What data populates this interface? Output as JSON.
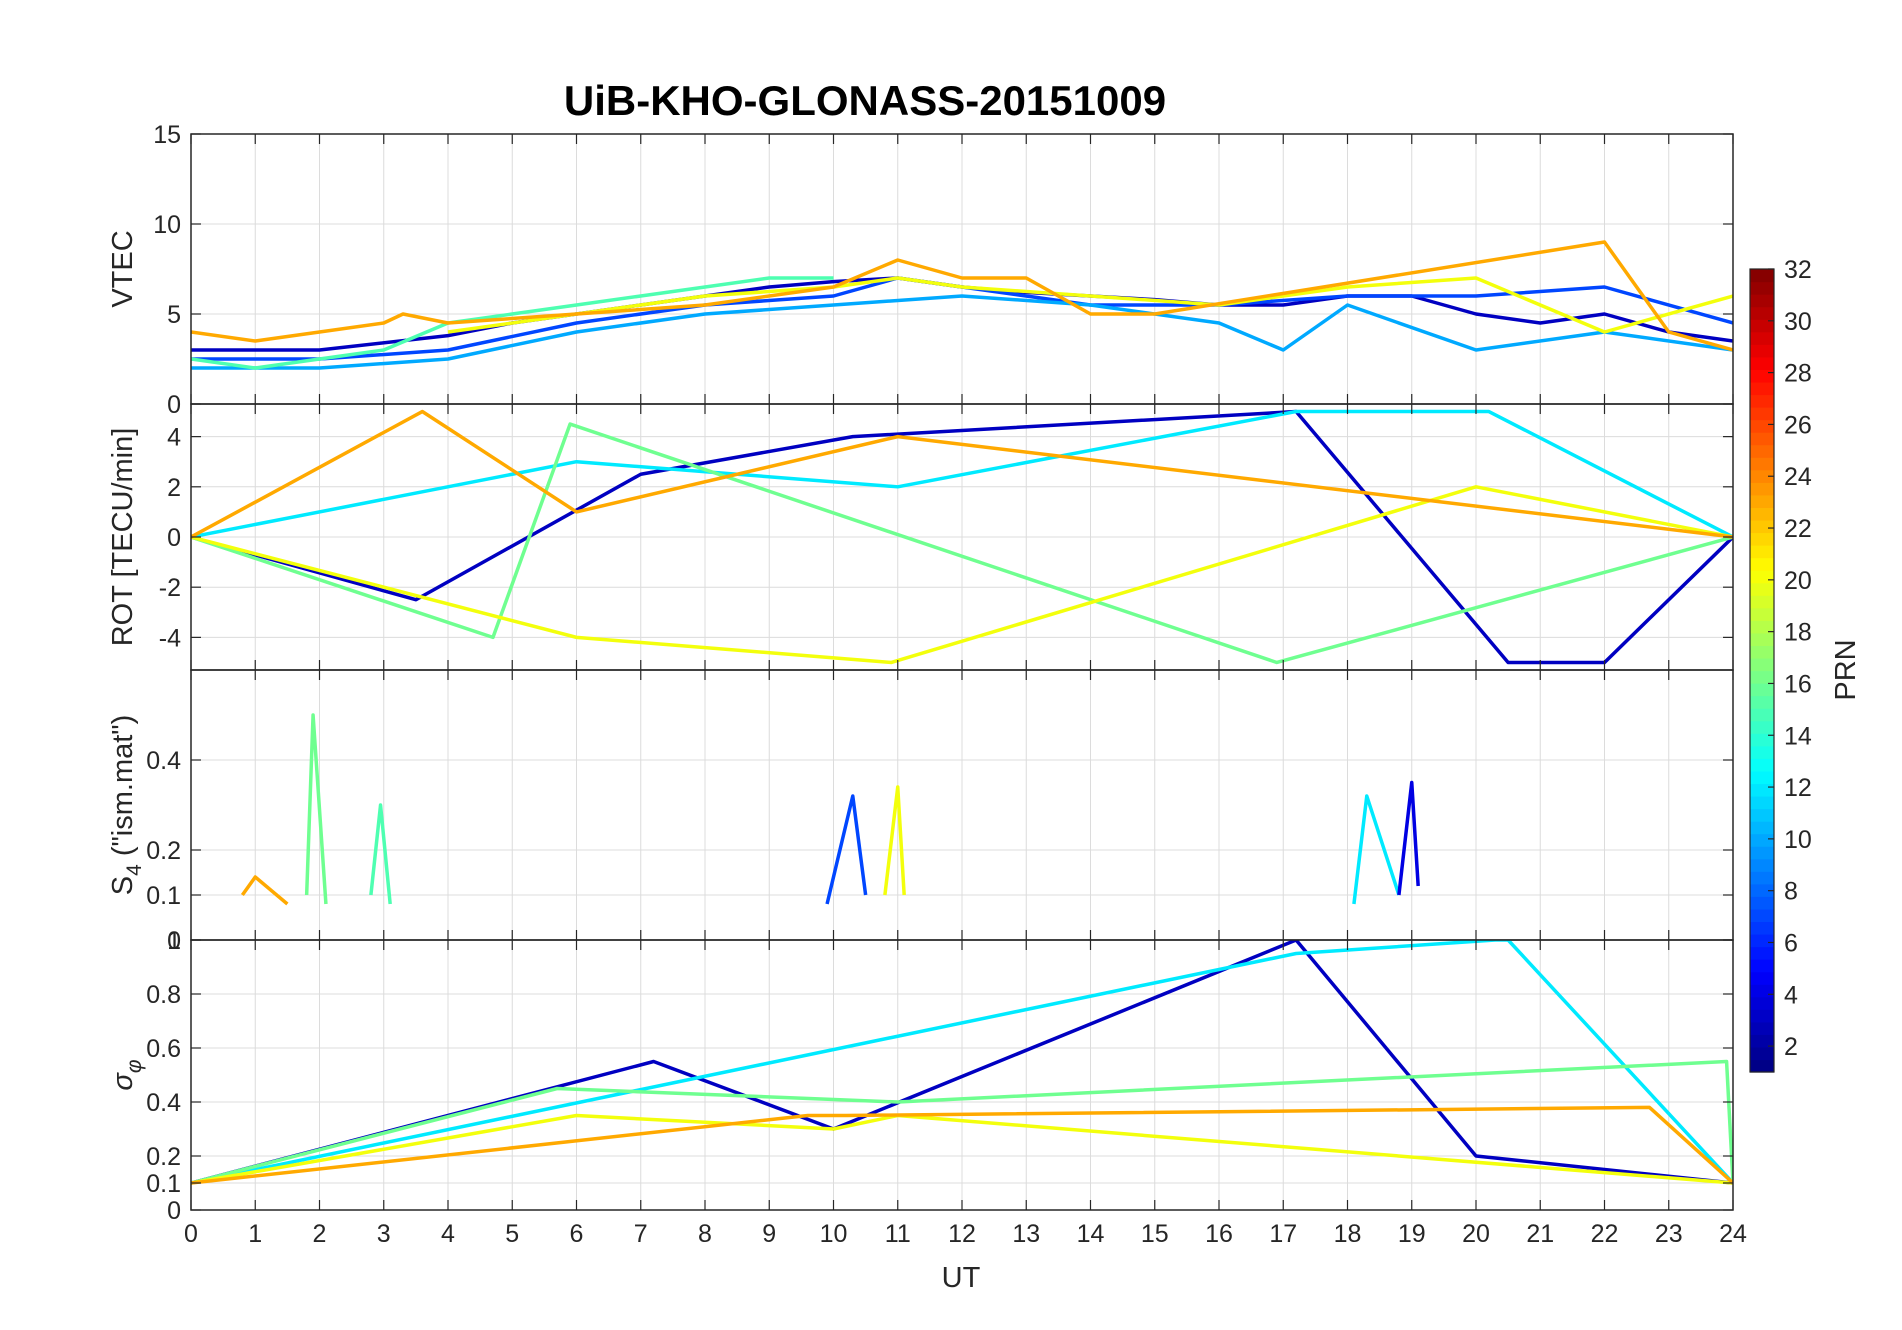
{
  "chart_data": {
    "type": "line",
    "title": "UiB-KHO-GLONASS-20151009",
    "xlabel": "UT",
    "xlim": [
      0,
      24
    ],
    "x_ticks": [
      "0",
      "1",
      "2",
      "3",
      "4",
      "5",
      "6",
      "7",
      "8",
      "9",
      "10",
      "11",
      "12",
      "13",
      "14",
      "15",
      "16",
      "17",
      "18",
      "19",
      "20",
      "21",
      "22",
      "23",
      "24"
    ],
    "grid": true,
    "colormap": "jet",
    "colorbar": {
      "label": "PRN",
      "range": [
        1,
        32
      ],
      "ticks": [
        "2",
        "4",
        "6",
        "8",
        "10",
        "12",
        "14",
        "16",
        "18",
        "20",
        "22",
        "24",
        "26",
        "28",
        "30",
        "32"
      ],
      "position": "right"
    },
    "panels": [
      {
        "ylabel": "VTEC",
        "ylim": [
          0,
          15
        ],
        "y_ticks": [
          "0",
          "5",
          "10",
          "15"
        ],
        "series": [
          {
            "prn": 3,
            "x": [
              0,
              2,
              4,
              5,
              6,
              7,
              8,
              9,
              10,
              11,
              12,
              13,
              14,
              15,
              16,
              17,
              18,
              19,
              20,
              21,
              22,
              23,
              24
            ],
            "y": [
              3,
              3,
              3.8,
              4.5,
              5,
              5.5,
              6,
              6.5,
              6.8,
              7,
              6.5,
              6.2,
              6,
              5.8,
              5.5,
              5.5,
              6,
              6,
              5,
              4.5,
              5,
              4,
              3.5
            ]
          },
          {
            "prn": 7,
            "x": [
              0,
              2,
              4,
              6,
              8,
              10,
              11,
              12,
              14,
              16,
              18,
              20,
              22,
              24
            ],
            "y": [
              2.5,
              2.5,
              3,
              4.5,
              5.5,
              6,
              7,
              6.5,
              5.5,
              5.5,
              6,
              6,
              6.5,
              4.5
            ]
          },
          {
            "prn": 10,
            "x": [
              0,
              2,
              4,
              6,
              8,
              10,
              12,
              14,
              16,
              17,
              18,
              20,
              22,
              24
            ],
            "y": [
              2,
              2,
              2.5,
              4,
              5,
              5.5,
              6,
              5.5,
              4.5,
              3,
              5.5,
              3,
              4,
              3
            ]
          },
          {
            "prn": 15,
            "x": [
              0,
              1,
              2,
              3,
              4,
              5,
              6,
              7,
              8,
              9,
              10
            ],
            "y": [
              2.5,
              2,
              2.5,
              3,
              4.5,
              5,
              5.5,
              6,
              6.5,
              7,
              7
            ]
          },
          {
            "prn": 20,
            "x": [
              4,
              6,
              8,
              10,
              11,
              12,
              14,
              16,
              18,
              20,
              22,
              24
            ],
            "y": [
              4,
              5,
              6,
              6.5,
              7,
              6.5,
              6,
              5.5,
              6.5,
              7,
              4,
              6
            ]
          },
          {
            "prn": 23,
            "x": [
              0,
              1,
              2,
              3,
              3.3,
              4,
              6,
              8,
              10,
              11,
              12,
              13,
              14,
              15,
              22,
              23,
              24
            ],
            "y": [
              4,
              3.5,
              4,
              4.5,
              5,
              4.5,
              5,
              5.5,
              6.5,
              8,
              7,
              7,
              5,
              5,
              9,
              4,
              3
            ]
          }
        ]
      },
      {
        "ylabel": "ROT [TECU/min]",
        "ylim": [
          -5.3,
          5.3
        ],
        "y_ticks": [
          "-4",
          "-2",
          "0",
          "2",
          "4"
        ],
        "series": [
          {
            "prn": 3,
            "x": [
              0,
              3.5,
              7,
              10.3,
              17.2,
              20.5,
              22,
              24
            ],
            "y": [
              0,
              -2.5,
              2.5,
              4,
              5,
              -5,
              -5,
              0
            ]
          },
          {
            "prn": 12,
            "x": [
              0,
              6,
              11,
              17.2,
              20.2,
              24
            ],
            "y": [
              0,
              3,
              2,
              5,
              5,
              0
            ]
          },
          {
            "prn": 16,
            "x": [
              0,
              4.7,
              5.9,
              16.9,
              24
            ],
            "y": [
              0,
              -4,
              4.5,
              -5,
              0
            ]
          },
          {
            "prn": 20,
            "x": [
              0,
              6,
              10.9,
              20,
              24
            ],
            "y": [
              0,
              -4,
              -5,
              2,
              0
            ]
          },
          {
            "prn": 23,
            "x": [
              0,
              3.6,
              6,
              11,
              24
            ],
            "y": [
              0,
              5,
              1,
              4,
              0
            ]
          }
        ]
      },
      {
        "ylabel": "S",
        "ylabel_subscript": "4",
        "ylabel_suffix": " (\"ism.mat\")",
        "ylim": [
          0,
          0.6
        ],
        "y_ticks": [
          "0",
          "0.1",
          "0.2",
          "0.4"
        ],
        "series": [
          {
            "prn": 16,
            "x": [
              1.8,
              1.9,
              2.1
            ],
            "y": [
              0.1,
              0.5,
              0.08
            ]
          },
          {
            "prn": 15,
            "x": [
              2.8,
              2.95,
              3.1
            ],
            "y": [
              0.1,
              0.3,
              0.08
            ]
          },
          {
            "prn": 7,
            "x": [
              9.9,
              10.3,
              10.5
            ],
            "y": [
              0.08,
              0.32,
              0.1
            ]
          },
          {
            "prn": 20,
            "x": [
              10.8,
              11,
              11.1
            ],
            "y": [
              0.1,
              0.34,
              0.1
            ]
          },
          {
            "prn": 12,
            "x": [
              18.1,
              18.3,
              18.8
            ],
            "y": [
              0.08,
              0.32,
              0.1
            ]
          },
          {
            "prn": 4,
            "x": [
              18.8,
              19,
              19.1
            ],
            "y": [
              0.1,
              0.35,
              0.12
            ]
          },
          {
            "prn": 23,
            "x": [
              0.8,
              1,
              1.5
            ],
            "y": [
              0.1,
              0.14,
              0.08
            ]
          }
        ]
      },
      {
        "ylabel": "σ",
        "ylabel_subscript": "φ",
        "ylim": [
          0,
          1
        ],
        "y_ticks": [
          "0",
          "0.1",
          "0.2",
          "0.4",
          "0.6",
          "0.8",
          "1"
        ],
        "series": [
          {
            "prn": 3,
            "x": [
              0,
              7.2,
              10,
              17.2,
              20,
              24
            ],
            "y": [
              0.1,
              0.55,
              0.3,
              1,
              0.2,
              0.1
            ]
          },
          {
            "prn": 12,
            "x": [
              0,
              17.2,
              20.3,
              20.5,
              24
            ],
            "y": [
              0.1,
              0.95,
              1,
              1,
              0.1
            ]
          },
          {
            "prn": 16,
            "x": [
              0,
              5.7,
              11,
              23.9,
              24
            ],
            "y": [
              0.1,
              0.45,
              0.4,
              0.55,
              0.1
            ]
          },
          {
            "prn": 20,
            "x": [
              0,
              6,
              10,
              11,
              24
            ],
            "y": [
              0.1,
              0.35,
              0.3,
              0.35,
              0.1
            ]
          },
          {
            "prn": 23,
            "x": [
              0,
              9.6,
              10.2,
              22.7,
              24
            ],
            "y": [
              0.1,
              0.35,
              0.35,
              0.38,
              0.1
            ]
          }
        ]
      }
    ]
  }
}
